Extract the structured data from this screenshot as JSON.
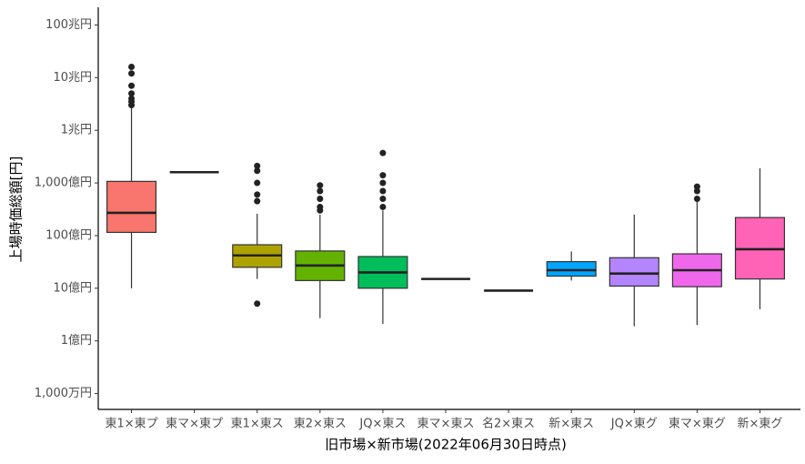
{
  "chart_data": {
    "type": "box",
    "xlabel": "旧市場×新市場(2022年06月30日時点)",
    "ylabel": "上場時価総額[円]",
    "log_y": true,
    "ylim": [
      5000000,
      200000000000000
    ],
    "yticks": [
      {
        "value": 10000000,
        "label": "1,000万円"
      },
      {
        "value": 100000000,
        "label": "1億円"
      },
      {
        "value": 1000000000,
        "label": "10億円"
      },
      {
        "value": 10000000000,
        "label": "100億円"
      },
      {
        "value": 100000000000,
        "label": "1,000億円"
      },
      {
        "value": 1000000000000,
        "label": "1兆円"
      },
      {
        "value": 10000000000000,
        "label": "10兆円"
      },
      {
        "value": 100000000000000,
        "label": "100兆円"
      }
    ],
    "categories": [
      "東1×東プ",
      "東マ×東プ",
      "東1×東ス",
      "東2×東ス",
      "JQ×東ス",
      "東マ×東ス",
      "名2×東ス",
      "新×東ス",
      "JQ×東グ",
      "東マ×東グ",
      "新×東グ"
    ],
    "colors": [
      "#F8766D",
      "#DB8E00",
      "#AEA200",
      "#64B200",
      "#00BD5C",
      "#00C1A7",
      "#00BADE",
      "#00A6FF",
      "#B385FF",
      "#EF67EB",
      "#FF63B6"
    ],
    "boxes": [
      {
        "min": 1000000000,
        "q1": 11500000000,
        "median": 27000000000,
        "q3": 107000000000,
        "max": 2900000000000,
        "outliers": [
          3000000000000,
          3500000000000,
          4000000000000,
          5000000000000,
          7000000000000,
          12000000000000,
          16000000000000
        ]
      },
      {
        "min": 160000000000,
        "q1": 160000000000,
        "median": 160000000000,
        "q3": 160000000000,
        "max": 160000000000,
        "outliers": []
      },
      {
        "min": 1500000000,
        "q1": 2500000000,
        "median": 4200000000,
        "q3": 6700000000,
        "max": 26000000000,
        "outliers": [
          510000000,
          45000000000,
          60000000000,
          100000000000,
          170000000000,
          210000000000
        ]
      },
      {
        "min": 270000000,
        "q1": 1400000000,
        "median": 2700000000,
        "q3": 5100000000,
        "max": 25000000000,
        "outliers": [
          30000000000,
          35000000000,
          50000000000,
          70000000000,
          90000000000
        ]
      },
      {
        "min": 210000000,
        "q1": 1000000000,
        "median": 2000000000,
        "q3": 4000000000,
        "max": 30000000000,
        "outliers": [
          35000000000,
          50000000000,
          70000000000,
          100000000000,
          140000000000,
          370000000000
        ]
      },
      {
        "min": 1500000000,
        "q1": 1500000000,
        "median": 1500000000,
        "q3": 1500000000,
        "max": 1500000000,
        "outliers": []
      },
      {
        "min": 900000000,
        "q1": 900000000,
        "median": 900000000,
        "q3": 900000000,
        "max": 900000000,
        "outliers": []
      },
      {
        "min": 1400000000,
        "q1": 1700000000,
        "median": 2200000000,
        "q3": 3200000000,
        "max": 5000000000,
        "outliers": []
      },
      {
        "min": 190000000,
        "q1": 1100000000,
        "median": 1900000000,
        "q3": 3800000000,
        "max": 25000000000,
        "outliers": []
      },
      {
        "min": 200000000,
        "q1": 1070000000,
        "median": 2200000000,
        "q3": 4500000000,
        "max": 45000000000,
        "outliers": [
          50000000000,
          70000000000,
          85000000000
        ]
      },
      {
        "min": 400000000,
        "q1": 1500000000,
        "median": 5500000000,
        "q3": 22000000000,
        "max": 190000000000,
        "outliers": []
      }
    ]
  }
}
